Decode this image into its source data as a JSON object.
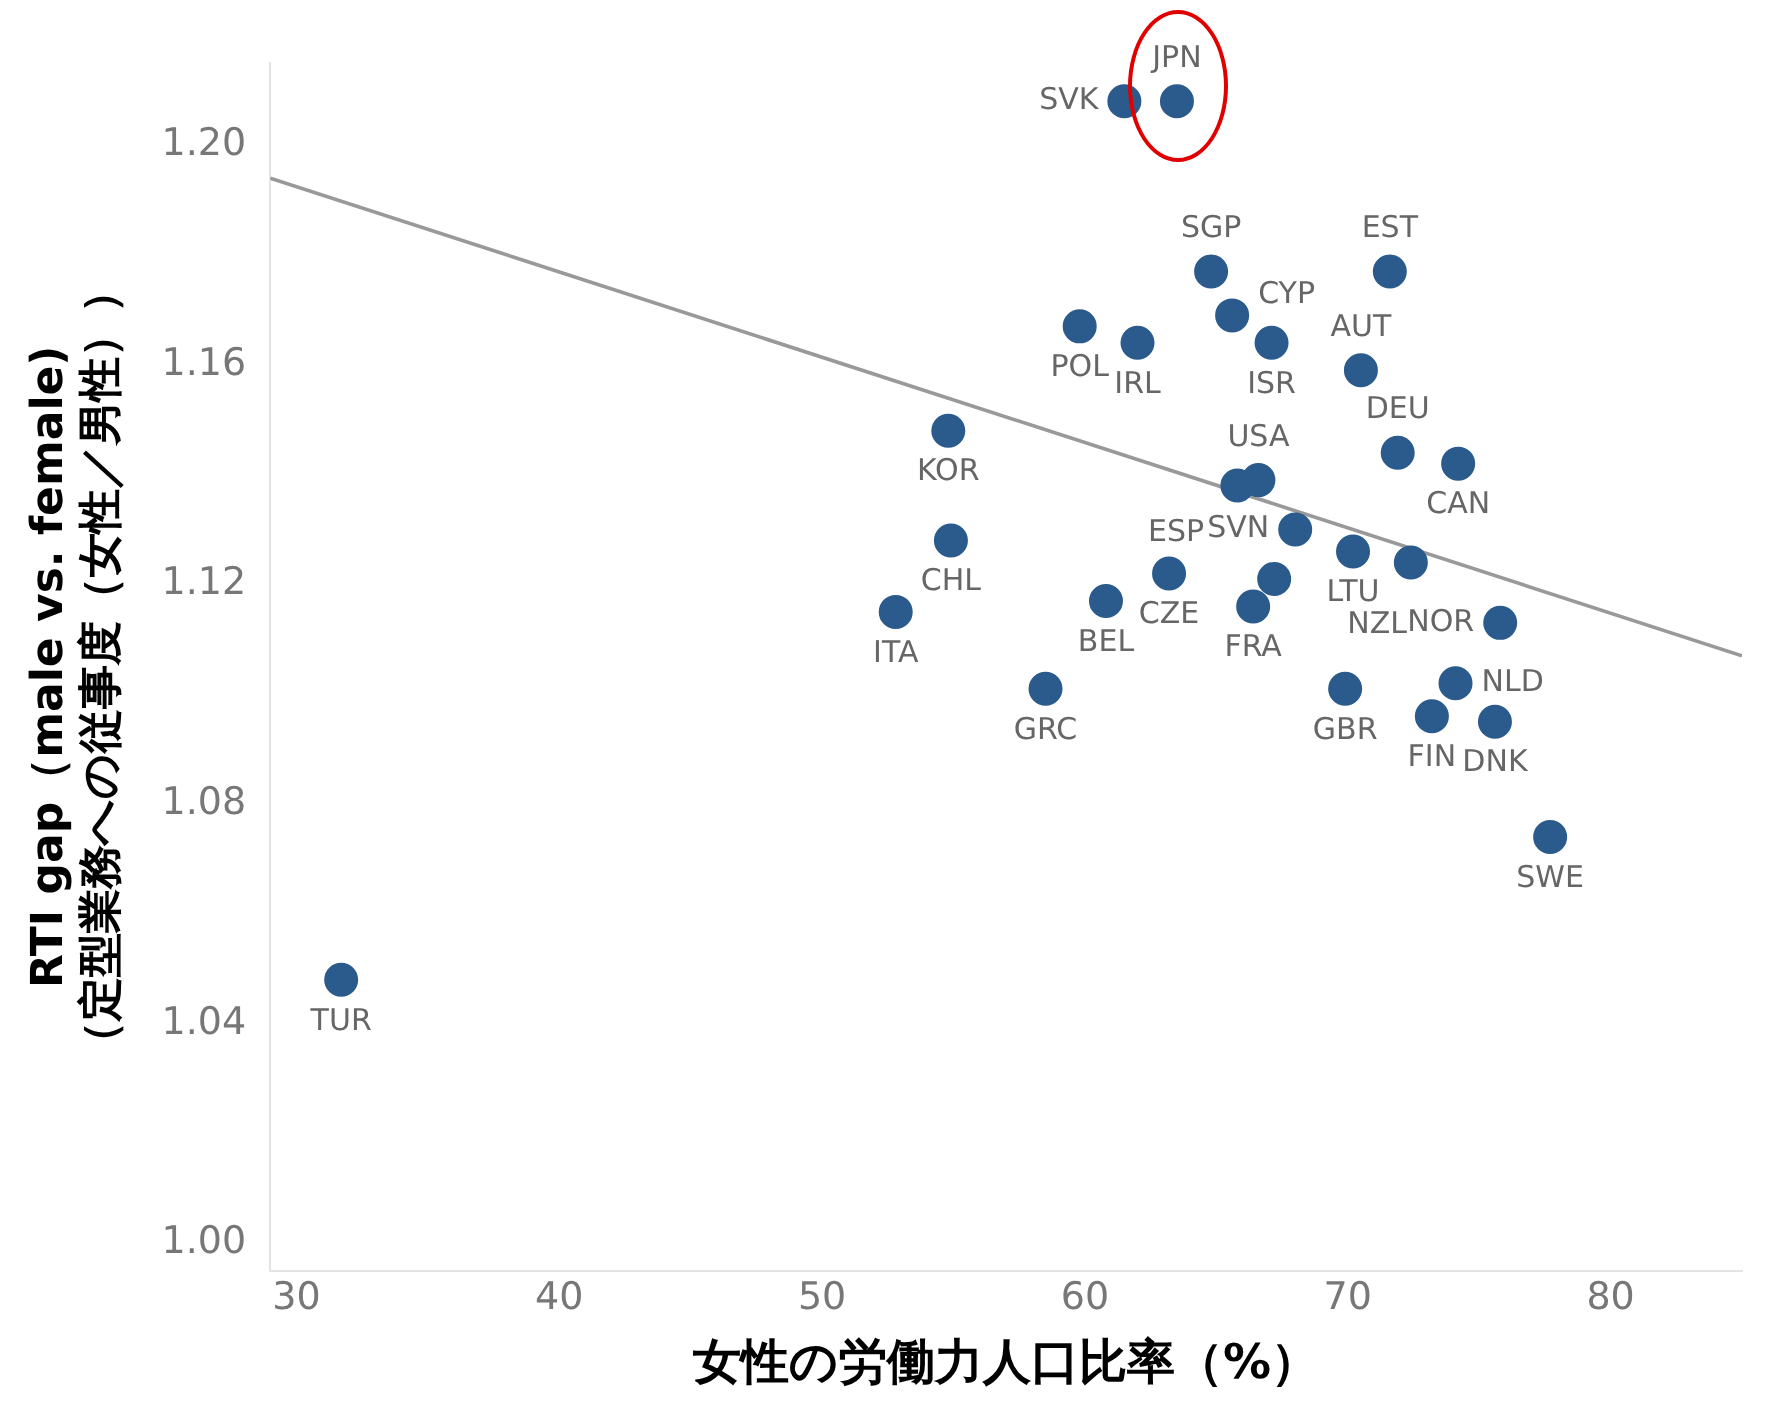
{
  "chart_data": {
    "type": "scatter",
    "ylabel": "RTI gap（male vs. female)\n（定型業務への従事度（女性／男性））",
    "xlabel": "女性の労働力人口比率（%）",
    "xlim": [
      29,
      85
    ],
    "xticks": [
      30,
      40,
      50,
      60,
      70,
      80
    ],
    "ylim": [
      0.995,
      1.215
    ],
    "yticks": [
      {
        "value": 1.0,
        "label": "1.00"
      },
      {
        "value": 1.04,
        "label": "1.04"
      },
      {
        "value": 1.08,
        "label": "1.08"
      },
      {
        "value": 1.12,
        "label": "1.12"
      },
      {
        "value": 1.16,
        "label": "1.16"
      },
      {
        "value": 1.2,
        "label": "1.20"
      }
    ],
    "grid": false,
    "legend": false,
    "marker": "circle",
    "series": [
      {
        "color": "#2b5b8c",
        "x": [
          31.7,
          63.5,
          61.5,
          64.8,
          71.6,
          59.8,
          62.0,
          65.6,
          67.1,
          70.5,
          54.8,
          71.9,
          74.2,
          65.8,
          66.6,
          54.9,
          68.0,
          70.2,
          72.4,
          60.8,
          63.2,
          66.4,
          67.2,
          52.8,
          75.8,
          58.5,
          69.9,
          74.1,
          73.2,
          75.6,
          77.7
        ],
        "values": [
          1.048,
          1.208,
          1.208,
          1.177,
          1.177,
          1.167,
          1.164,
          1.169,
          1.164,
          1.159,
          1.148,
          1.144,
          1.142,
          1.138,
          1.139,
          1.128,
          1.13,
          1.126,
          1.124,
          1.117,
          1.122,
          1.116,
          1.121,
          1.115,
          1.113,
          1.101,
          1.101,
          1.102,
          1.096,
          1.095,
          1.074
        ]
      },
      {
        "type": "line",
        "marker": "none",
        "color": "#999999",
        "x": [
          29,
          85
        ],
        "values": [
          1.194,
          1.107
        ]
      }
    ],
    "annotations": [
      {
        "text": "TUR",
        "x": 31.7,
        "y": 1.048
      },
      {
        "text": "JPN",
        "x": 63.5,
        "y": 1.208
      },
      {
        "text": "SVK",
        "x": 61.5,
        "y": 1.208
      },
      {
        "text": "SGP",
        "x": 64.8,
        "y": 1.177
      },
      {
        "text": "EST",
        "x": 71.6,
        "y": 1.177
      },
      {
        "text": "POL",
        "x": 59.8,
        "y": 1.167
      },
      {
        "text": "IRL",
        "x": 62.0,
        "y": 1.164
      },
      {
        "text": "CYP",
        "x": 65.6,
        "y": 1.169
      },
      {
        "text": "ISR",
        "x": 67.1,
        "y": 1.164
      },
      {
        "text": "AUT",
        "x": 70.5,
        "y": 1.159
      },
      {
        "text": "KOR",
        "x": 54.8,
        "y": 1.148
      },
      {
        "text": "DEU",
        "x": 71.9,
        "y": 1.144
      },
      {
        "text": "CAN",
        "x": 74.2,
        "y": 1.142
      },
      {
        "text": "ESP",
        "x": 65.8,
        "y": 1.138
      },
      {
        "text": "USA",
        "x": 66.6,
        "y": 1.139
      },
      {
        "text": "CHL",
        "x": 54.9,
        "y": 1.128
      },
      {
        "text": "SVN",
        "x": 68.0,
        "y": 1.13
      },
      {
        "text": "LTU",
        "x": 70.2,
        "y": 1.126
      },
      {
        "text": "NZL",
        "x": 72.4,
        "y": 1.124
      },
      {
        "text": "BEL",
        "x": 60.8,
        "y": 1.117
      },
      {
        "text": "CZE",
        "x": 63.2,
        "y": 1.122
      },
      {
        "text": "FRA",
        "x": 66.4,
        "y": 1.116
      },
      {
        "text": "ITA",
        "x": 52.8,
        "y": 1.115
      },
      {
        "text": "NOR",
        "x": 75.8,
        "y": 1.113
      },
      {
        "text": "GRC",
        "x": 58.5,
        "y": 1.101
      },
      {
        "text": "GBR",
        "x": 69.9,
        "y": 1.101
      },
      {
        "text": "NLD",
        "x": 74.1,
        "y": 1.102
      },
      {
        "text": "FIN",
        "x": 73.2,
        "y": 1.096
      },
      {
        "text": "DNK",
        "x": 75.6,
        "y": 1.095
      },
      {
        "text": "SWE",
        "x": 77.7,
        "y": 1.074
      }
    ]
  }
}
